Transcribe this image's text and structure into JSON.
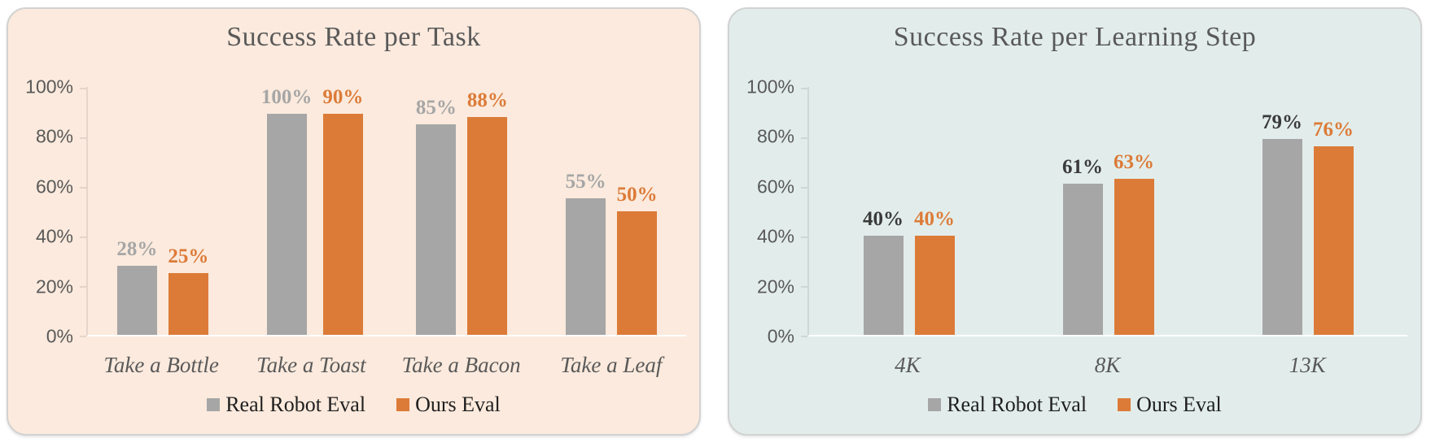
{
  "page": {
    "background": "#ffffff"
  },
  "colors": {
    "gray_series": "#a6a6a6",
    "orange_series": "#dc7b38",
    "title_text": "#595959",
    "axis_text": "#595959",
    "legend_text": "#1f1f1f"
  },
  "chart_data": [
    {
      "type": "bar",
      "title": "Success Rate per Task",
      "background": "#fbeadd",
      "xlabel": "",
      "ylabel": "",
      "ylim": [
        0,
        100
      ],
      "grid": false,
      "legend_position": "bottom",
      "y_ticks": [
        "100%",
        "80%",
        "60%",
        "40%",
        "20%",
        "0%"
      ],
      "categories": [
        "Take a Bottle",
        "Take a Toast",
        "Take a Bacon",
        "Take a Leaf"
      ],
      "series": [
        {
          "name": "Real Robot Eval",
          "color": "#a6a6a6",
          "label_color": "#a6a6a6",
          "values": [
            28,
            100,
            85,
            55
          ],
          "labels": [
            "28%",
            "100%",
            "85%",
            "55%"
          ]
        },
        {
          "name": "Ours Eval",
          "color": "#dc7b38",
          "label_color": "#dc7b38",
          "values": [
            25,
            90,
            88,
            50
          ],
          "labels": [
            "25%",
            "90%",
            "88%",
            "50%"
          ]
        }
      ],
      "legend": [
        {
          "label": "Real Robot Eval",
          "color": "#a6a6a6"
        },
        {
          "label": "Ours Eval",
          "color": "#dc7b38"
        }
      ]
    },
    {
      "type": "bar",
      "title": "Success Rate per Learning Step",
      "background": "#e2edeb",
      "xlabel": "",
      "ylabel": "",
      "ylim": [
        0,
        100
      ],
      "grid": false,
      "legend_position": "bottom",
      "y_ticks": [
        "100%",
        "80%",
        "60%",
        "40%",
        "20%",
        "0%"
      ],
      "categories": [
        "4K",
        "8K",
        "13K"
      ],
      "series": [
        {
          "name": "Real Robot Eval",
          "color": "#a6a6a6",
          "label_color": "#3a3a3a",
          "values": [
            40,
            61,
            79
          ],
          "labels": [
            "40%",
            "61%",
            "79%"
          ]
        },
        {
          "name": "Ours Eval",
          "color": "#dc7b38",
          "label_color": "#dc7b38",
          "values": [
            40,
            63,
            76
          ],
          "labels": [
            "40%",
            "63%",
            "76%"
          ]
        }
      ],
      "legend": [
        {
          "label": "Real Robot Eval",
          "color": "#a6a6a6"
        },
        {
          "label": "Ours Eval",
          "color": "#dc7b38"
        }
      ]
    }
  ]
}
